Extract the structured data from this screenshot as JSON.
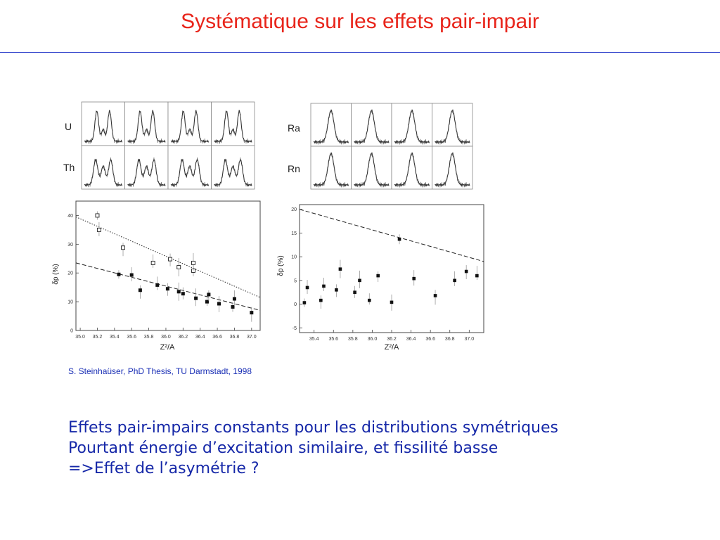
{
  "slide": {
    "title": "Systématique sur les effets pair-impair",
    "citation": "S. Steinhaüser, PhD Thesis, TU Darmstadt, 1998",
    "lines": [
      "Effets pair-impairs constants pour les distributions symétriques",
      "Pourtant énergie d’excitation similaire, et fissilité basse",
      "=>Effet de l’asymétrie  ?"
    ]
  },
  "panels": {
    "left_rows": [
      "U",
      "Th"
    ],
    "right_rows": [
      "Ra",
      "Rn"
    ]
  },
  "chart_data": [
    {
      "type": "scatter",
      "title": "",
      "xlabel": "Z²/A",
      "ylabel": "δp (%)",
      "xlim": [
        34.95,
        37.1
      ],
      "ylim": [
        0,
        45
      ],
      "xticks": [
        "35.0",
        "35.2",
        "35.4",
        "35.6",
        "35.8",
        "36.0",
        "36.2",
        "36.4",
        "36.6",
        "36.8",
        "37.0"
      ],
      "yticks": [
        "0",
        "10",
        "20",
        "30",
        "40"
      ],
      "series": [
        {
          "marker": "filled-square",
          "points": [
            [
              35.45,
              19.5
            ],
            [
              35.6,
              19.3
            ],
            [
              35.7,
              14.0
            ],
            [
              35.9,
              15.8
            ],
            [
              36.02,
              14.5
            ],
            [
              36.15,
              13.5
            ],
            [
              36.2,
              12.8
            ],
            [
              36.35,
              11.2
            ],
            [
              36.48,
              10.0
            ],
            [
              36.5,
              12.5
            ],
            [
              36.62,
              9.3
            ],
            [
              36.78,
              8.2
            ],
            [
              36.8,
              11.0
            ],
            [
              37.0,
              6.2
            ]
          ]
        },
        {
          "marker": "open-symbol",
          "points": [
            [
              35.2,
              40.0
            ],
            [
              35.22,
              35.0
            ],
            [
              35.5,
              28.8
            ],
            [
              35.85,
              23.5
            ],
            [
              36.05,
              24.8
            ],
            [
              36.15,
              22.0
            ],
            [
              36.32,
              20.8
            ],
            [
              36.32,
              23.5
            ]
          ]
        }
      ],
      "trend_lines": [
        {
          "style": "dashed",
          "from": [
            34.95,
            23.5
          ],
          "to": [
            37.1,
            7.0
          ]
        },
        {
          "style": "dotted",
          "from": [
            34.95,
            39.5
          ],
          "to": [
            37.1,
            11.5
          ]
        }
      ]
    },
    {
      "type": "scatter",
      "title": "",
      "xlabel": "Z²/A",
      "ylabel": "δp (%)",
      "xlim": [
        35.25,
        37.15
      ],
      "ylim": [
        -6,
        21
      ],
      "xticks": [
        "35.4",
        "35.6",
        "35.8",
        "36.0",
        "36.2",
        "36.4",
        "36.6",
        "36.8",
        "37.0"
      ],
      "yticks": [
        "-5",
        "0",
        "5",
        "10",
        "15",
        "20"
      ],
      "series": [
        {
          "marker": "filled-circle",
          "points": [
            [
              35.3,
              0.3
            ],
            [
              35.33,
              3.5
            ],
            [
              35.47,
              0.8
            ],
            [
              35.5,
              3.8
            ],
            [
              35.63,
              3.0
            ],
            [
              35.67,
              7.4
            ],
            [
              35.82,
              2.5
            ],
            [
              35.87,
              5.0
            ],
            [
              35.97,
              0.8
            ],
            [
              36.06,
              6.0
            ],
            [
              36.2,
              0.4
            ],
            [
              36.28,
              13.7
            ],
            [
              36.43,
              5.4
            ],
            [
              36.65,
              1.8
            ],
            [
              36.85,
              5.0
            ],
            [
              36.97,
              6.9
            ],
            [
              37.08,
              6.0
            ]
          ]
        }
      ],
      "trend_lines": [
        {
          "style": "dashed",
          "from": [
            35.25,
            20.0
          ],
          "to": [
            37.15,
            9.0
          ]
        }
      ]
    }
  ]
}
